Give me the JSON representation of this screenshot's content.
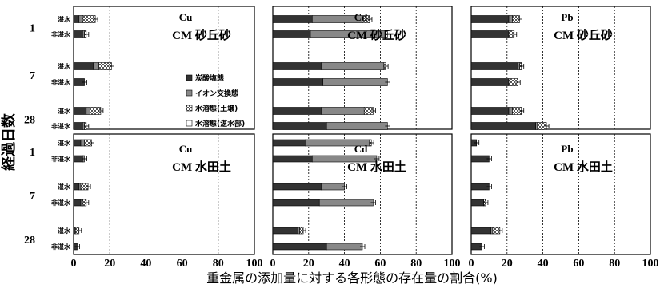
{
  "figure": {
    "y_title": "経過日数",
    "x_title": "重金属の添加量に対する各形態の存在量の割合(%)",
    "day_labels": [
      "1",
      "7",
      "28"
    ],
    "flood_label": "湛水",
    "nonflood_label": "非湛水",
    "x_ticks": [
      "0",
      "20",
      "40",
      "60",
      "80",
      "100"
    ]
  },
  "legend": {
    "items": [
      {
        "label": "炭酸塩態",
        "color": "#333333"
      },
      {
        "label": "イオン交換態",
        "color": "#888888"
      },
      {
        "label": "水溶態(土壌)",
        "color": "#bbbbbb"
      },
      {
        "label": "水溶態(湛水部)",
        "color": "#ffffff"
      }
    ]
  },
  "chart_data": [
    {
      "type": "bar",
      "orientation": "horizontal",
      "stacked": true,
      "metal": "Cu",
      "soil": "CM 砂丘砂",
      "xlim": [
        0,
        100
      ],
      "categories": [
        "1 湛水",
        "1 非湛水",
        "7 湛水",
        "7 非湛水",
        "28 湛水",
        "28 非湛水"
      ],
      "series": [
        {
          "name": "炭酸塩態",
          "values": [
            3,
            5,
            11,
            6,
            7,
            5
          ]
        },
        {
          "name": "イオン交換態",
          "values": [
            2,
            1,
            3,
            0,
            2,
            1
          ]
        },
        {
          "name": "水溶態(土壌)",
          "values": [
            7,
            1,
            7,
            0,
            6,
            1
          ]
        },
        {
          "name": "水溶態(湛水部)",
          "values": [
            0,
            0,
            0,
            0,
            0,
            0
          ]
        }
      ]
    },
    {
      "type": "bar",
      "orientation": "horizontal",
      "stacked": true,
      "metal": "Cd",
      "soil": "CM 砂丘砂",
      "xlim": [
        0,
        100
      ],
      "categories": [
        "1 湛水",
        "1 非湛水",
        "7 湛水",
        "7 非湛水",
        "28 湛水",
        "28 非湛水"
      ],
      "series": [
        {
          "name": "炭酸塩態",
          "values": [
            22,
            21,
            27,
            28,
            27,
            30
          ]
        },
        {
          "name": "イオン交換態",
          "values": [
            28,
            42,
            35,
            36,
            24,
            34
          ]
        },
        {
          "name": "水溶態(土壌)",
          "values": [
            4,
            1,
            1,
            0,
            5,
            0
          ]
        },
        {
          "name": "水溶態(湛水部)",
          "values": [
            0,
            0,
            0,
            0,
            0,
            0
          ]
        }
      ]
    },
    {
      "type": "bar",
      "orientation": "horizontal",
      "stacked": true,
      "metal": "Pb",
      "soil": "CM 砂丘砂",
      "xlim": [
        0,
        100
      ],
      "categories": [
        "1 湛水",
        "1 非湛水",
        "7 湛水",
        "7 非湛水",
        "28 湛水",
        "28 非湛水"
      ],
      "series": [
        {
          "name": "炭酸塩態",
          "values": [
            21,
            21,
            26,
            21,
            21,
            36
          ]
        },
        {
          "name": "イオン交換態",
          "values": [
            2,
            0,
            1,
            0,
            2,
            1
          ]
        },
        {
          "name": "水溶態(土壌)",
          "values": [
            4,
            3,
            1,
            5,
            5,
            5
          ]
        },
        {
          "name": "水溶態(湛水部)",
          "values": [
            0,
            0,
            0,
            0,
            0,
            0
          ]
        }
      ]
    },
    {
      "type": "bar",
      "orientation": "horizontal",
      "stacked": true,
      "metal": "Cu",
      "soil": "CM 水田土",
      "xlim": [
        0,
        100
      ],
      "categories": [
        "1 湛水",
        "1 非湛水",
        "7 湛水",
        "7 非湛水",
        "28 湛水",
        "28 非湛水"
      ],
      "series": [
        {
          "name": "炭酸塩態",
          "values": [
            4,
            5,
            3,
            4,
            1,
            2
          ]
        },
        {
          "name": "イオン交換態",
          "values": [
            2,
            1,
            1,
            1,
            0,
            0
          ]
        },
        {
          "name": "水溶態(土壌)",
          "values": [
            4,
            0,
            4,
            2,
            2,
            0
          ]
        },
        {
          "name": "水溶態(湛水部)",
          "values": [
            0,
            0,
            0,
            0,
            0,
            0
          ]
        }
      ]
    },
    {
      "type": "bar",
      "orientation": "horizontal",
      "stacked": true,
      "metal": "Cd",
      "soil": "CM 水田土",
      "xlim": [
        0,
        100
      ],
      "categories": [
        "1 湛水",
        "1 非湛水",
        "7 湛水",
        "7 非湛水",
        "28 湛水",
        "28 非湛水"
      ],
      "series": [
        {
          "name": "炭酸塩態",
          "values": [
            18,
            22,
            27,
            26,
            14,
            30
          ]
        },
        {
          "name": "イオン交換態",
          "values": [
            36,
            36,
            13,
            30,
            1,
            20
          ]
        },
        {
          "name": "水溶態(土壌)",
          "values": [
            1,
            0,
            0,
            0,
            2,
            0
          ]
        },
        {
          "name": "水溶態(湛水部)",
          "values": [
            0,
            0,
            0,
            0,
            0,
            0
          ]
        }
      ]
    },
    {
      "type": "bar",
      "orientation": "horizontal",
      "stacked": true,
      "metal": "Pb",
      "soil": "CM 水田土",
      "xlim": [
        0,
        100
      ],
      "categories": [
        "1 湛水",
        "1 非湛水",
        "7 湛水",
        "7 非湛水",
        "28 湛水",
        "28 非湛水"
      ],
      "series": [
        {
          "name": "炭酸塩態",
          "values": [
            3,
            10,
            10,
            7,
            11,
            6
          ]
        },
        {
          "name": "イオン交換態",
          "values": [
            0,
            0,
            0,
            0,
            1,
            0
          ]
        },
        {
          "name": "水溶態(土壌)",
          "values": [
            0,
            0,
            0,
            1,
            4,
            0
          ]
        },
        {
          "name": "水溶態(湛水部)",
          "values": [
            0,
            0,
            0,
            0,
            0,
            0
          ]
        }
      ]
    }
  ]
}
